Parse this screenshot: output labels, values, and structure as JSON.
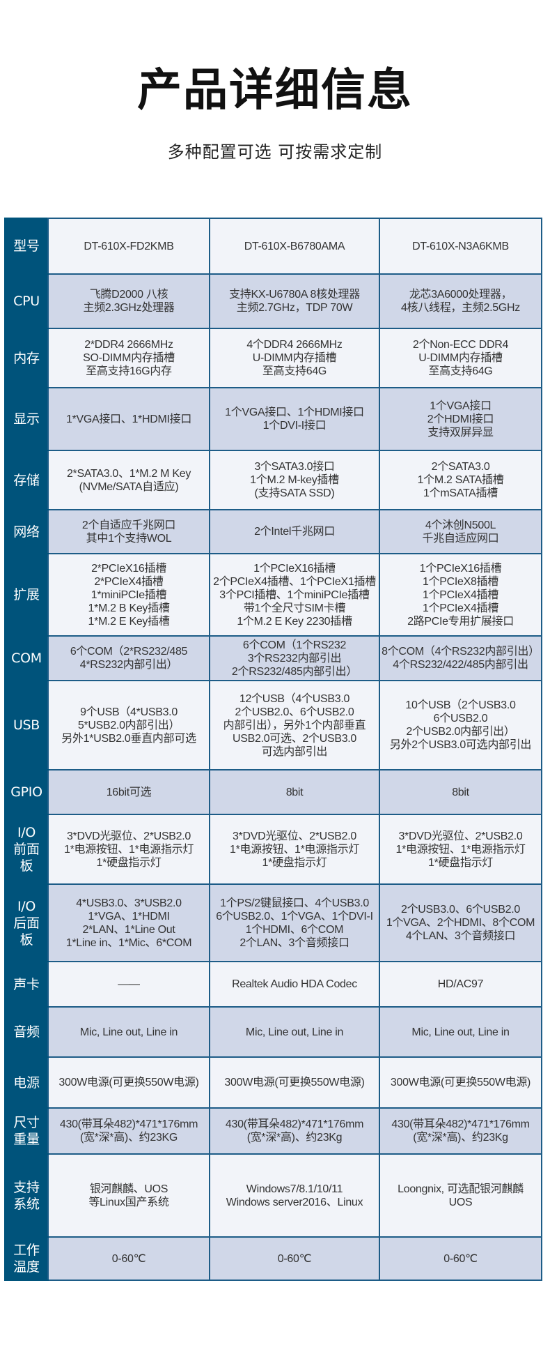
{
  "title": "产品详细信息",
  "subtitle": "多种配置可选 可按需求定制",
  "colors": {
    "label_bg": "#00537b",
    "row_light": "#f2f4f9",
    "row_dark": "#d0d7e8",
    "border": "#1d5c87"
  },
  "rows": [
    {
      "label": "型号",
      "values": [
        "DT-610X-FD2KMB",
        "DT-610X-B6780AMA",
        "DT-610X-N3A6KMB"
      ]
    },
    {
      "label": "CPU",
      "values": [
        "飞腾D2000 八核\n主频2.3GHz处理器",
        "支持KX-U6780A 8核处理器\n主频2.7GHz，TDP 70W",
        "龙芯3A6000处理器，\n4核八线程，主频2.5GHz"
      ]
    },
    {
      "label": "内存",
      "values": [
        "2*DDR4 2666MHz\nSO-DIMM内存插槽\n至高支持16G内存",
        "4个DDR4 2666MHz\nU-DIMM内存插槽\n至高支持64G",
        "2个Non-ECC DDR4\nU-DIMM内存插槽\n至高支持64G"
      ]
    },
    {
      "label": "显示",
      "values": [
        "1*VGA接口、1*HDMI接口",
        "1个VGA接口、1个HDMI接口\n1个DVI-I接口",
        "1个VGA接口\n2个HDMI接口\n支持双屏异显"
      ]
    },
    {
      "label": "存储",
      "values": [
        "2*SATA3.0、1*M.2 M Key\n(NVMe/SATA自适应)",
        "3个SATA3.0接口\n1个M.2 M-key插槽\n(支持SATA SSD)",
        "2个SATA3.0\n1个M.2 SATA插槽\n1个mSATA插槽"
      ]
    },
    {
      "label": "网络",
      "values": [
        "2个自适应千兆网口\n其中1个支持WOL",
        "2个Intel千兆网口",
        "4个沐创N500L\n千兆自适应网口"
      ]
    },
    {
      "label": "扩展",
      "values": [
        "2*PCIeX16插槽\n2*PCIeX4插槽\n1*miniPCIe插槽\n1*M.2 B Key插槽\n1*M.2 E Key插槽",
        "1个PCIeX16插槽\n2个PCIeX4插槽、1个PCIeX1插槽\n3个PCI插槽、1个miniPCIe插槽\n带1个全尺寸SIM卡槽\n1个M.2 E Key 2230插槽",
        "1个PCIeX16插槽\n1个PCIeX8插槽\n1个PCIeX4插槽\n1个PCIeX4插槽\n2路PCIe专用扩展接口"
      ]
    },
    {
      "label": "COM",
      "values": [
        "6个COM（2*RS232/485\n4*RS232内部引出）",
        "6个COM（1个RS232\n3个RS232内部引出\n2个RS232/485内部引出）",
        "8个COM（4个RS232内部引出）\n4个RS232/422/485内部引出"
      ]
    },
    {
      "label": "USB",
      "values": [
        "9个USB（4*USB3.0\n5*USB2.0内部引出）\n另外1*USB2.0垂直内部可选",
        "12个USB（4个USB3.0\n2个USB2.0、6个USB2.0\n内部引出），另外1个内部垂直\nUSB2.0可选、2个USB3.0\n可选内部引出",
        "10个USB（2个USB3.0\n6个USB2.0\n2个USB2.0内部引出）\n另外2个USB3.0可选内部引出"
      ]
    },
    {
      "label": "GPIO",
      "values": [
        "16bit可选",
        "8bit",
        "8bit"
      ]
    },
    {
      "label": "I/O\n前面板",
      "values": [
        "3*DVD光驱位、2*USB2.0\n1*电源按钮、1*电源指示灯\n1*硬盘指示灯",
        "3*DVD光驱位、2*USB2.0\n1*电源按钮、1*电源指示灯\n1*硬盘指示灯",
        "3*DVD光驱位、2*USB2.0\n1*电源按钮、1*电源指示灯\n1*硬盘指示灯"
      ]
    },
    {
      "label": "I/O\n后面板",
      "values": [
        "4*USB3.0、3*USB2.0\n1*VGA、1*HDMI\n2*LAN、1*Line Out\n1*Line in、1*Mic、6*COM",
        "1个PS/2键鼠接口、4个USB3.0\n6个USB2.0、1个VGA、1个DVI-I\n1个HDMI、6个COM\n2个LAN、3个音频接口",
        "2个USB3.0、6个USB2.0\n1个VGA、2个HDMI、8个COM\n4个LAN、3个音频接口"
      ]
    },
    {
      "label": "声卡",
      "values": [
        "——",
        "Realtek Audio HDA Codec",
        "HD/AC97"
      ]
    },
    {
      "label": "音频",
      "values": [
        "Mic, Line out, Line in",
        "Mic, Line out, Line in",
        "Mic, Line out, Line in"
      ]
    },
    {
      "label": "电源",
      "values": [
        "300W电源(可更换550W电源)",
        "300W电源(可更换550W电源)",
        "300W电源(可更换550W电源)"
      ]
    },
    {
      "label": "尺寸\n重量",
      "values": [
        "430(带耳朵482)*471*176mm\n(宽*深*高)、约23KG",
        "430(带耳朵482)*471*176mm\n(宽*深*高)、约23Kg",
        "430(带耳朵482)*471*176mm\n(宽*深*高)、约23Kg"
      ]
    },
    {
      "label": "支持\n系统",
      "values": [
        "银河麒麟、UOS\n等Linux国产系统",
        "Windows7/8.1/10/11\nWindows server2016、Linux",
        "Loongnix, 可选配银河麒麟\nUOS"
      ]
    },
    {
      "label": "工作\n温度",
      "values": [
        "0-60℃",
        "0-60℃",
        "0-60℃"
      ]
    }
  ]
}
